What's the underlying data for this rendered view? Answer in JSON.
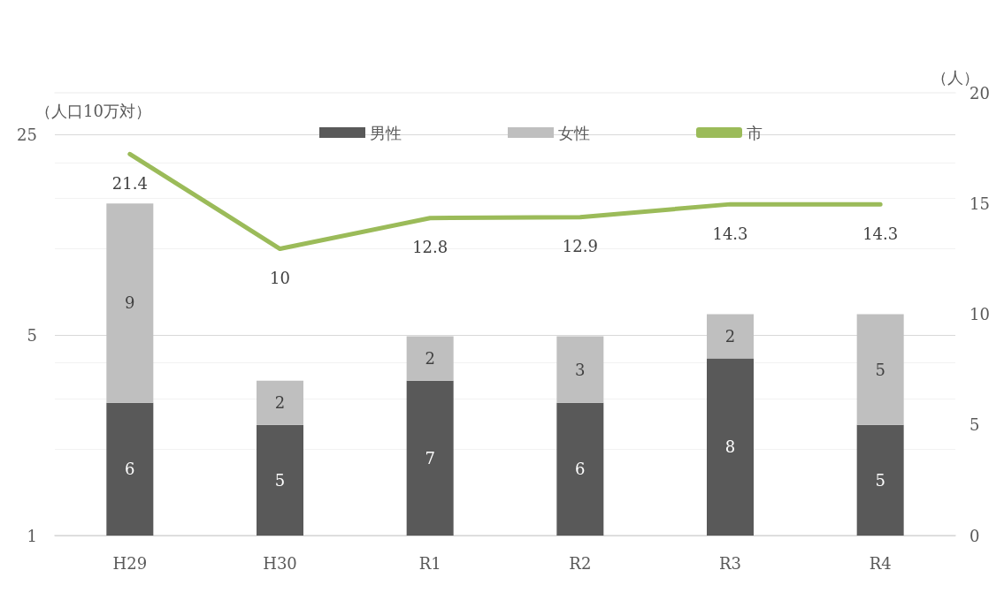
{
  "chart_data": {
    "type": "bar",
    "ylabel": "（人口10万対）",
    "y2label": "（人）",
    "categories": [
      "H29",
      "H30",
      "R1",
      "R2",
      "R3",
      "R4"
    ],
    "series": [
      {
        "name": "男性",
        "color": "#595959",
        "values": [
          6,
          5,
          7,
          6,
          8,
          5
        ],
        "axis": "y2"
      },
      {
        "name": "女性",
        "color": "#bfbfbf",
        "values": [
          9,
          2,
          2,
          3,
          2,
          5
        ],
        "axis": "y2"
      },
      {
        "name": "市",
        "type": "line",
        "color": "#9bbb59",
        "values": [
          21.4,
          10,
          12.8,
          12.9,
          14.3,
          14.3
        ]
      }
    ],
    "stacked": true,
    "log": "y",
    "ylim": [
      1,
      35
    ],
    "yticks": [
      1,
      {
        "value": 2,
        "label": null
      },
      {
        "value": 3,
        "label": null
      },
      {
        "value": 4,
        "label": null
      },
      5,
      {
        "value": 10,
        "label": null
      },
      {
        "value": 15,
        "label": null
      },
      {
        "value": 20,
        "label": null
      },
      25
    ],
    "y2lim": [
      0,
      20
    ],
    "y2ticks": [
      0,
      5,
      10,
      15,
      20
    ],
    "grid": "y",
    "legend": "top",
    "data_labels": true,
    "marker": "none"
  }
}
